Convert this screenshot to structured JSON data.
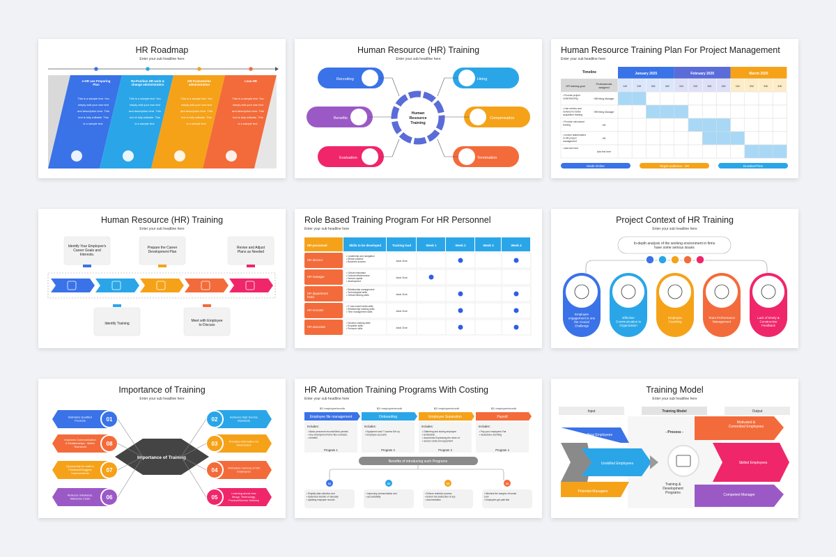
{
  "subtitle": "Enter your sub headline here",
  "s1": {
    "title": "HR Roadmap",
    "cols": [
      {
        "head": "e-HR use Preparing Plan",
        "color": "#3a72e8"
      },
      {
        "head": "Re-Position HR work & change administration",
        "color": "#2aa6e8"
      },
      {
        "head": "HR Frameworks administration",
        "color": "#f5a219"
      },
      {
        "head": "Lean HR",
        "color": "#f36b3a"
      }
    ],
    "body": [
      "This is a sample text. You",
      "simply add your own text",
      "and description here. This",
      "text is fully editable. This",
      "is a sample text."
    ]
  },
  "s2": {
    "title": "Human Resource (HR) Training",
    "center": [
      "Human",
      "Resource",
      "Training"
    ],
    "items": [
      "Recruiting",
      "Hiring",
      "Benefits",
      "Compensation",
      "Evaluation",
      "Termination"
    ]
  },
  "s3": {
    "title": "Human Resource Training Plan For Project Management",
    "timeline": "Timeline",
    "goal": "HR training goal",
    "person": "Professionals assigned",
    "months": [
      "January 2025",
      "February 2025",
      "March 2025"
    ],
    "weeks": [
      "1W",
      "2W",
      "3W",
      "4W",
      "1W",
      "2W",
      "3W",
      "4W",
      "1W",
      "2W",
      "3W",
      "4W"
    ],
    "rows": [
      [
        "Provide project understanding",
        "HR/Hiring Manager"
      ],
      [
        "Use metrics and reviews for better acquisition training",
        "HR/Hiring Manager"
      ],
      [
        "Provide role-based training",
        "HR"
      ],
      [
        "Involve stakeholders in HR project management",
        "HR"
      ],
      [
        "Add text here",
        "Add text here"
      ]
    ],
    "footer": [
      "Mode Online",
      "Target Audience - HR",
      "Duration/Time"
    ]
  },
  "s4": {
    "title": "Human Resource (HR) Training",
    "top": [
      [
        "Identify Your Employee's",
        "Career Goals and",
        "Interests."
      ],
      [
        "Prepare the Career",
        "Development Plan"
      ],
      [
        "Revise and Adjust",
        "Plans as Needed"
      ]
    ],
    "bottom": [
      [
        "Identify Training"
      ],
      [
        "Meet with Employee",
        "to Discuss"
      ]
    ]
  },
  "s5": {
    "title": "Role Based Training Program For HR Personnel",
    "headers": [
      "HR personnel",
      "Skills to be developed",
      "Training lead",
      "Week 1",
      "Week 2",
      "Week 3",
      "Week 4"
    ],
    "rows": [
      {
        "role": "HR director",
        "skills": [
          "Leadership and navigation",
          "Ethical practice",
          "Business acumen"
        ],
        "lead": "Jack Doe"
      },
      {
        "role": "HR manager",
        "skills": [
          "Critical evaluation",
          "Cultural effectiveness",
          "Human capital",
          "development"
        ],
        "lead": "Jack Doe"
      },
      {
        "role": "HR department head",
        "skills": [
          "Relationship management",
          "Technological skills",
          "Critical thinking skills"
        ],
        "lead": "Jack Doe"
      },
      {
        "role": "HR recruiter",
        "skills": [
          "IT and social media skills",
          "Relationship building skills",
          "Time management skills"
        ],
        "lead": "Jack Doe"
      },
      {
        "role": "HR associate",
        "skills": [
          "Decision-making skills",
          "Empathic skills",
          "Pressure skills"
        ],
        "lead": "Jack Doe"
      }
    ]
  },
  "s6": {
    "title": "Project Context of HR Training",
    "callout": [
      "In-depth analysis of the working environment in firms",
      "have some serious issues"
    ],
    "cards": [
      [
        "Employee",
        "engagement is one",
        "the Crucial",
        "Challenge"
      ],
      [
        "Effective",
        "Communication in",
        "Organization"
      ],
      [
        "Employee",
        "Coaching"
      ],
      [
        "Team Performance",
        "Management"
      ],
      [
        "Lack of timely &",
        "Constructive",
        "Feedback"
      ]
    ]
  },
  "s7": {
    "title": "Importance of Training",
    "center": "Importance of Training",
    "left": [
      [
        "01",
        "Maintains Qualified",
        "Products"
      ],
      [
        "08",
        "Improves Communication",
        "& Relationships · Better",
        "Teamwork"
      ],
      [
        "07",
        "Opportunity for staff to",
        "Feedback/Suggest",
        "Improvements"
      ],
      [
        "06",
        "Reduces Imbalance,",
        "Makes/se Costs"
      ]
    ],
    "right": [
      [
        "02",
        "Achieves High Service",
        "Standards"
      ],
      [
        "03",
        "Provides Information for",
        "Newcomers"
      ],
      [
        "04",
        "Refreshes memory of Old",
        "Employees"
      ],
      [
        "05",
        "Learning about new",
        "things, Technology,",
        "Product/Service Delivery"
      ]
    ]
  },
  "s8": {
    "title": "HR Automation Training Programs With Costing",
    "costs": [
      "$2/ employee/month",
      "$2/ employee/month",
      "$2/ employee/month",
      "$2/ employee/month"
    ],
    "progs": [
      "Employee file management",
      "Onboarding",
      "Employee Separation",
      "Payroll"
    ],
    "includes": "Includes:",
    "bullets": [
      [
        "Basic personnel records/Work permits",
        "Key employment forms like contracts,",
        "benefits"
      ],
      [
        "Equipment and IT access Set up",
        "Employee accounts"
      ],
      [
        "Gathering and storing employee",
        "termination",
        "documents Expressing the return of",
        "access cards and equipment"
      ],
      [
        "Pay your employees Fair",
        "deductions and filing"
      ]
    ],
    "programs": [
      "Program 1",
      "Program 2",
      "Program 3",
      "Program 4"
    ],
    "benefits": "Benefits of introducing such Programs",
    "nums": [
      "01",
      "02",
      "03",
      "04"
    ],
    "notes": [
      [
        "Simplify data collection and",
        "Systemize transfer of manually",
        "updating employee records"
      ],
      [
        "Improving communication and",
        "accountability"
      ],
      [
        "Enforce retention process",
        "Ensure the destruction of any",
        "documentation"
      ],
      [
        "Minimize the margins of human",
        "error",
        "Employees get paid fast"
      ]
    ]
  },
  "s9": {
    "title": "Training Model",
    "cols": [
      "Input",
      "Training Model",
      "Output"
    ],
    "left": [
      "New Employees",
      "Unskilled Employees",
      "Potential Managers"
    ],
    "process": "- Process -",
    "caption": [
      "Training &",
      "Development",
      "Programs"
    ],
    "right": [
      "Motivated &",
      "Committed Employees",
      "Skilled Employees",
      "Competent Manager"
    ]
  }
}
